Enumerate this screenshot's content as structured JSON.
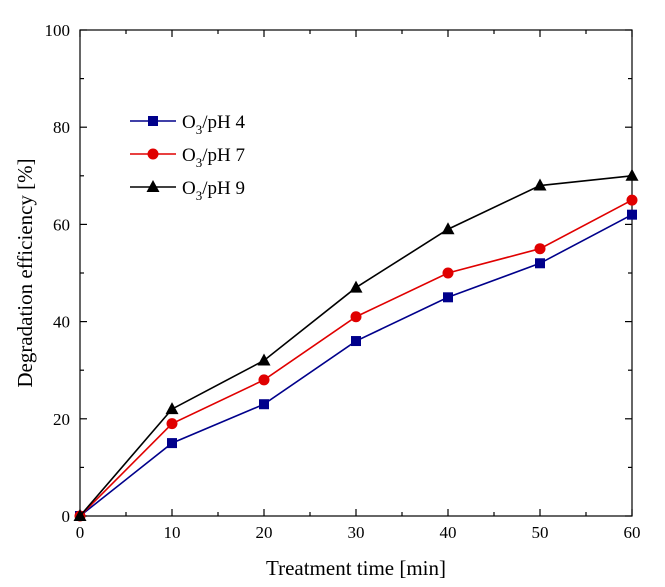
{
  "chart_data": {
    "type": "line",
    "title": "",
    "xlabel": "Treatment time [min]",
    "ylabel": "Degradation efficiency [%]",
    "x": [
      0,
      10,
      20,
      30,
      40,
      50,
      60
    ],
    "xlim": [
      0,
      60
    ],
    "ylim": [
      0,
      100
    ],
    "xticks": [
      0,
      10,
      20,
      30,
      40,
      50,
      60
    ],
    "yticks": [
      0,
      20,
      40,
      60,
      80,
      100
    ],
    "grid": false,
    "legend_position": "top-left",
    "series": [
      {
        "name": "O3/pH 4",
        "legend_main": "O",
        "legend_sub": "3",
        "legend_rest": "/pH 4",
        "color": "#00008B",
        "marker": "square",
        "values": [
          0,
          15,
          23,
          36,
          45,
          52,
          62
        ]
      },
      {
        "name": "O3/pH 7",
        "legend_main": "O",
        "legend_sub": "3",
        "legend_rest": "/pH 7",
        "color": "#E00000",
        "marker": "circle",
        "values": [
          0,
          19,
          28,
          41,
          50,
          55,
          65
        ]
      },
      {
        "name": "O3/pH 9",
        "legend_main": "O",
        "legend_sub": "3",
        "legend_rest": "/pH 9",
        "color": "#000000",
        "marker": "triangle",
        "values": [
          0,
          22,
          32,
          47,
          59,
          68,
          70
        ]
      }
    ]
  }
}
